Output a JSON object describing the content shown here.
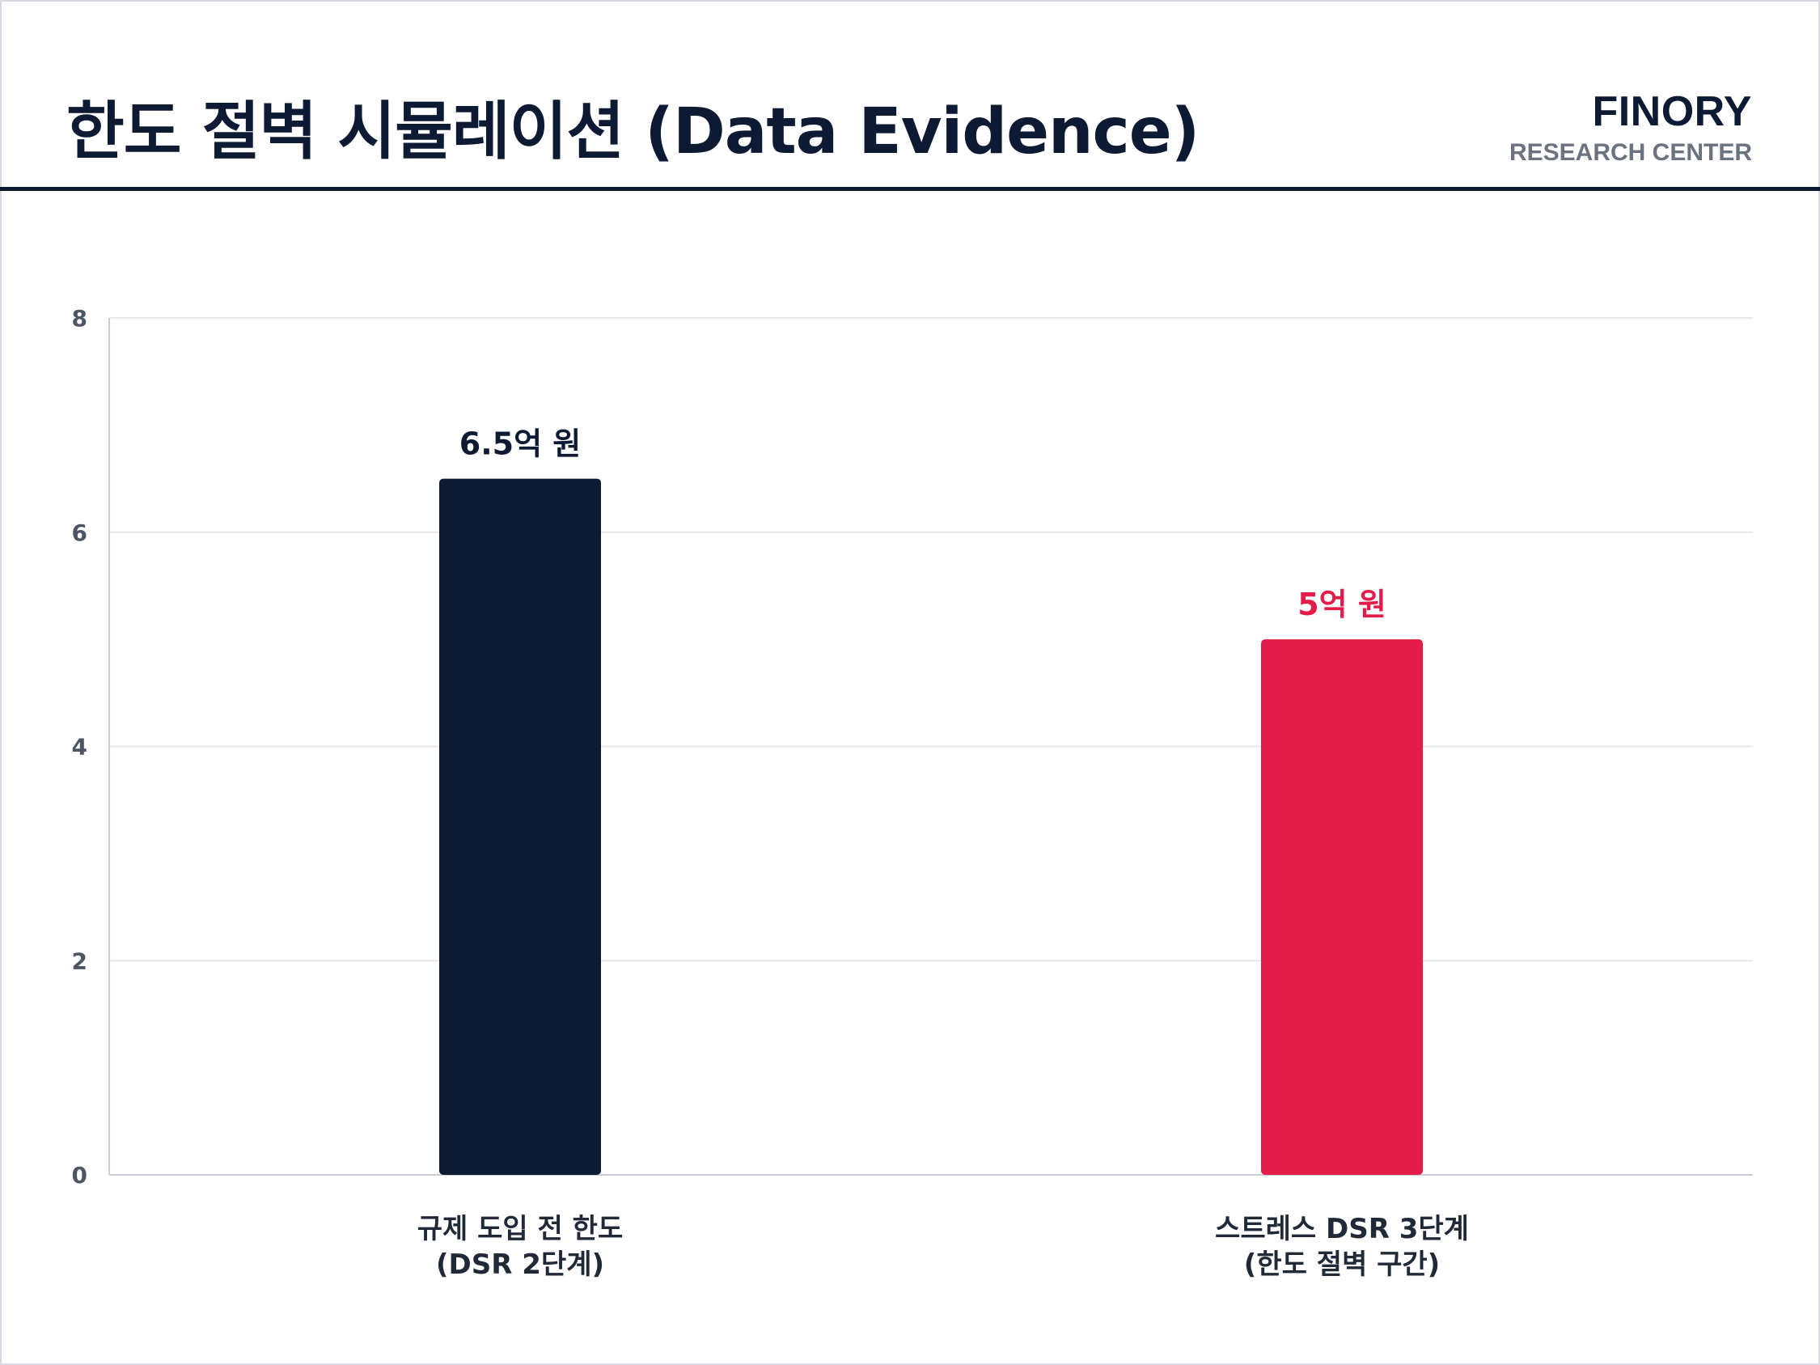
{
  "header": {
    "title": "한도 절벽 시뮬레이션 (Data Evidence)",
    "brand_name": "FINORY",
    "brand_sub": "RESEARCH CENTER"
  },
  "colors": {
    "navy": "#0c1a33",
    "red": "#e31c4a",
    "grid": "#e6e8ec",
    "axis": "#c9cdd3",
    "tick_text": "#4b5563"
  },
  "chart_data": {
    "type": "bar",
    "categories": [
      [
        "규제 도입 전 한도",
        "(DSR 2단계)"
      ],
      [
        "스트레스 DSR 3단계",
        "(한도 절벽 구간)"
      ]
    ],
    "values": [
      6.5,
      5
    ],
    "data_labels": [
      "6.5억 원",
      "5억 원"
    ],
    "bar_colors": [
      "#0c1a33",
      "#e31c4a"
    ],
    "label_colors": [
      "#0c1a33",
      "#e31c4a"
    ],
    "ylim": [
      0,
      8
    ],
    "yticks": [
      0,
      2,
      4,
      6,
      8
    ],
    "grid": true,
    "legend": "none"
  }
}
